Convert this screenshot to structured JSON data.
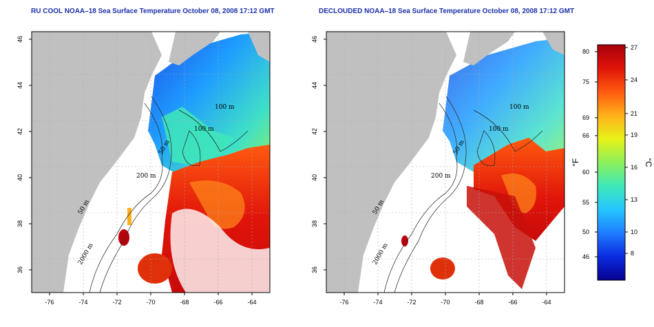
{
  "maps": [
    {
      "title": "RU COOL NOAA–18 Sea Surface Temperature October 08, 2008 17:12 GMT",
      "x_ticks": [
        "-76",
        "-74",
        "-72",
        "-70",
        "-68",
        "-66",
        "-64"
      ],
      "y_ticks": [
        "36",
        "38",
        "40",
        "42",
        "44",
        "46"
      ],
      "contour_labels": [
        "100 m",
        "100 m",
        "50 m",
        "200 m",
        "50 m",
        "2000 m"
      ],
      "cloud_mask": "clouded"
    },
    {
      "title": "DECLOUDED NOAA–18 Sea Surface Temperature October 08, 2008 17:12 GMT",
      "x_ticks": [
        "-76",
        "-74",
        "-72",
        "-70",
        "-68",
        "-66",
        "-64"
      ],
      "y_ticks": [
        "36",
        "38",
        "40",
        "42",
        "44",
        "46"
      ],
      "contour_labels": [
        "100 m",
        "100 m",
        "50 m",
        "200 m",
        "50 m",
        "2000 m"
      ],
      "cloud_mask": "declouded"
    }
  ],
  "colorbar": {
    "f_ticks": [
      "80",
      "75",
      "69",
      "66",
      "60",
      "55",
      "50",
      "46"
    ],
    "c_ticks": [
      "27",
      "24",
      "21",
      "19",
      "16",
      "13",
      "10",
      "8"
    ],
    "f_unit": "°F",
    "c_unit": "°C",
    "colors": [
      "#08008f",
      "#0a2be0",
      "#1e7cff",
      "#25c6ff",
      "#3fe8b9",
      "#8cf05a",
      "#e8f21a",
      "#ffb01a",
      "#ff5a10",
      "#e0140a",
      "#a8000a"
    ]
  },
  "colors": {
    "land": "#c0c0c0",
    "ocean_bg": "#ffffff",
    "title": "#1a2fa8"
  }
}
